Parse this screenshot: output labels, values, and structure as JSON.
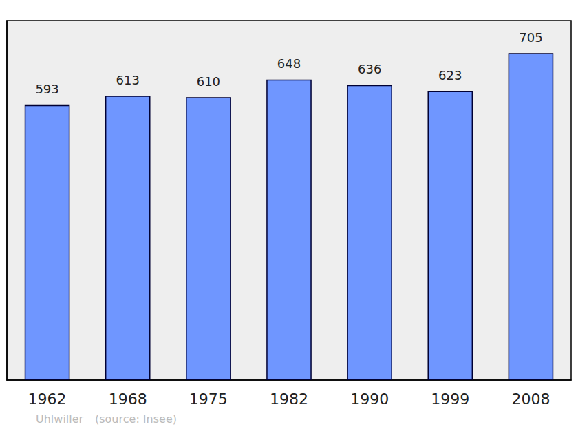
{
  "chart_data": {
    "type": "bar",
    "categories": [
      "1962",
      "1968",
      "1975",
      "1982",
      "1990",
      "1999",
      "2008"
    ],
    "values": [
      593,
      613,
      610,
      648,
      636,
      623,
      705
    ],
    "color": "#6f96ff",
    "ylim": [
      0,
      775
    ],
    "grid": false,
    "data_labels": true,
    "tick_labels": "x",
    "annotations": [
      "Uhlwiller",
      "(source: Insee)"
    ]
  }
}
